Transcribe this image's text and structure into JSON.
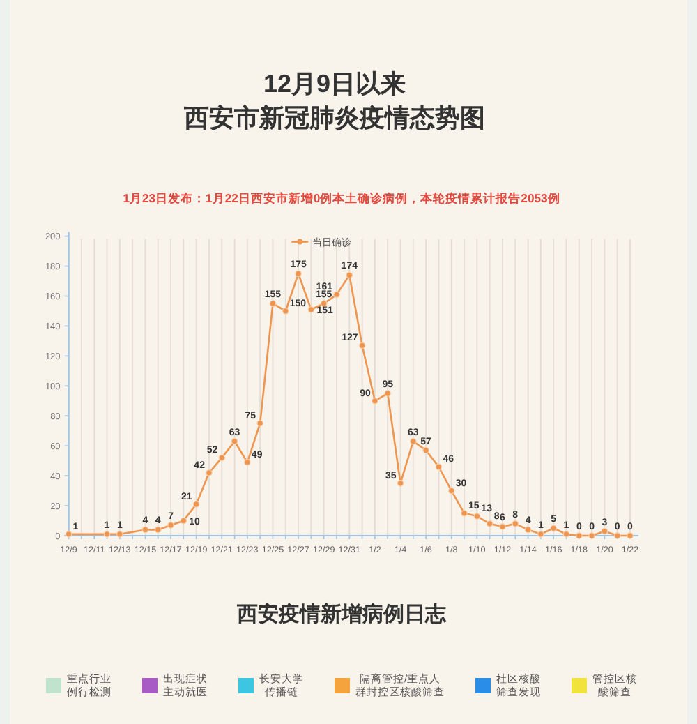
{
  "chart_data": [
    {
      "type": "line",
      "title": "12月9日以来",
      "subtitle": "西安市新冠肺炎疫情态势图",
      "annotations": [
        "1月23日发布：1月22日西安市新增0例本土确诊病例，本轮疫情累计报告2053例"
      ],
      "categories": [
        "12/9",
        null,
        "12/11",
        null,
        "12/13",
        null,
        "12/15",
        null,
        "12/17",
        null,
        "12/19",
        null,
        "12/21",
        null,
        "12/23",
        null,
        "12/25",
        null,
        "12/27",
        null,
        "12/29",
        null,
        "12/31",
        null,
        "1/2",
        null,
        "1/4",
        null,
        "1/6",
        null,
        "1/8",
        null,
        "1/10",
        null,
        "1/12",
        null,
        "1/14",
        null,
        "1/16",
        null,
        "1/18",
        null,
        "1/20",
        null,
        "1/22"
      ],
      "series": [
        {
          "name": "当日确诊",
          "color": "#ee9550",
          "values": [
            1,
            null,
            null,
            1,
            1,
            null,
            4,
            4,
            7,
            10,
            21,
            42,
            52,
            63,
            49,
            75,
            155,
            150,
            175,
            151,
            155,
            161,
            174,
            127,
            90,
            95,
            35,
            63,
            57,
            46,
            30,
            15,
            13,
            8,
            6,
            8,
            4,
            1,
            5,
            1,
            0,
            0,
            3,
            0,
            0
          ]
        }
      ],
      "ylim": [
        0,
        200
      ],
      "yticks": [
        0,
        20,
        40,
        60,
        80,
        100,
        120,
        140,
        160,
        180,
        200
      ],
      "grid": "x",
      "legend": "top",
      "marker": "circle",
      "line_style": "solid",
      "data_labels": true
    },
    {
      "type": "other",
      "title": "西安疫情新增病例日志",
      "categories": [
        "重点行业例行检测",
        "出现症状主动就医",
        "长安大学传播链",
        "隔离管控/重点人群封控区核酸筛查",
        "社区核酸筛查发现",
        "管控区核酸筛查"
      ],
      "colors": [
        "#bfe3cc",
        "#a95bc5",
        "#3cc6e2",
        "#f5a33c",
        "#2a8de8",
        "#f2e23c"
      ]
    }
  ]
}
